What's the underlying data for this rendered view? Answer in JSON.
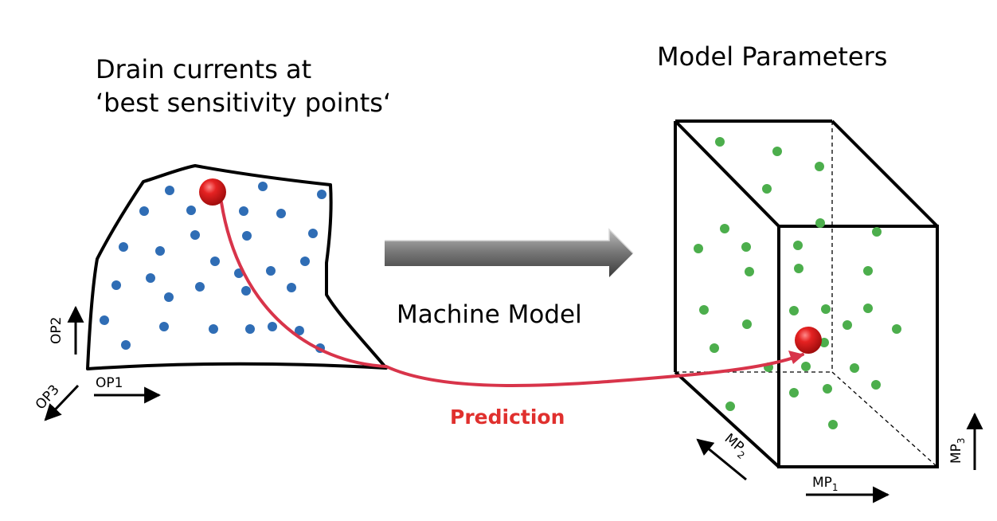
{
  "labels": {
    "left_title_line1": "Drain currents at",
    "left_title_line2": "‘best sensitivity points‘",
    "right_title": "Model Parameters",
    "machine_model": "Machine Model",
    "prediction": "Prediction",
    "op1": "OP1",
    "op2": "OP2",
    "op3": "OP3",
    "mp1_base": "MP",
    "mp1_sub": "1",
    "mp2_base": "MP",
    "mp2_sub": "2",
    "mp3_base": "MP",
    "mp3_sub": "3"
  },
  "colors": {
    "operating_point_dot": "#2f6db5",
    "model_param_dot": "#4cae4c",
    "highlight_dot": "#e01818",
    "prediction_curve": "#d8344a",
    "prediction_text": "#e0302e",
    "outline": "#000000",
    "arrow_body": "#6e6e6e"
  }
}
